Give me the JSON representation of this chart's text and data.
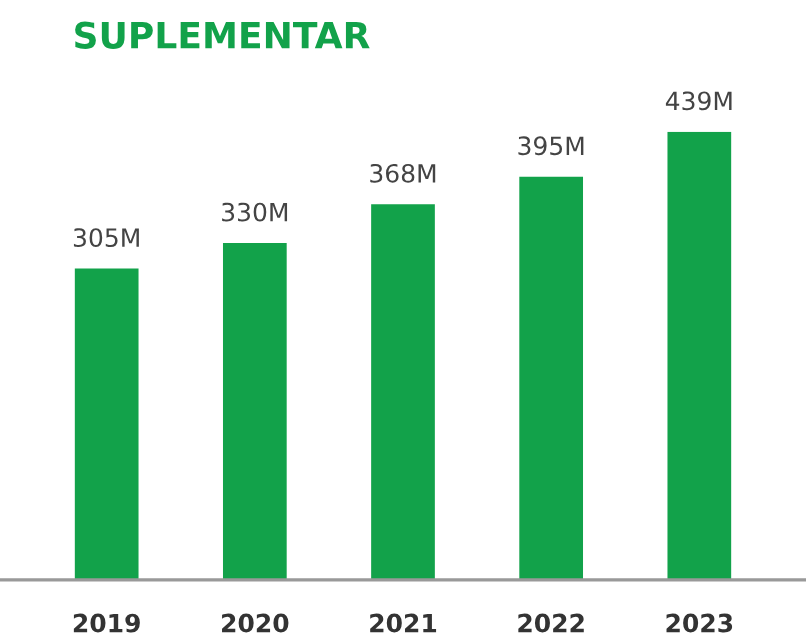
{
  "chart_data": {
    "type": "bar",
    "title": "SUPLEMENTAR",
    "categories": [
      "2019",
      "2020",
      "2021",
      "2022",
      "2023"
    ],
    "values": [
      305,
      330,
      368,
      395,
      439
    ],
    "value_labels": [
      "305M",
      "330M",
      "368M",
      "395M",
      "439M"
    ],
    "color": "#12a24a",
    "grid": false,
    "legend": false
  }
}
